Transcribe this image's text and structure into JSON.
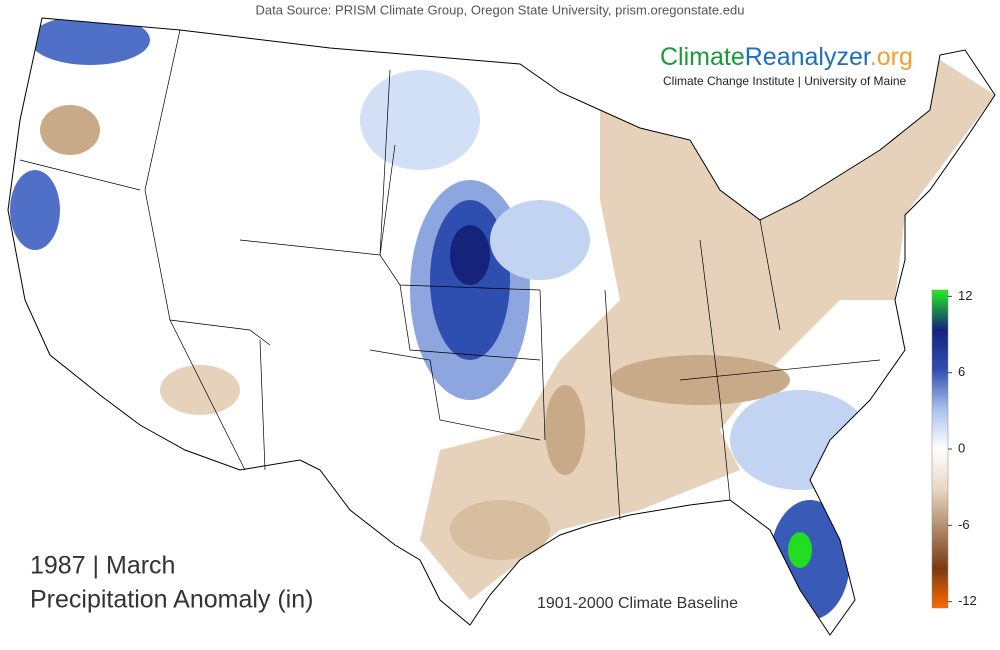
{
  "header": {
    "source": "Data Source: PRISM Climate Group, Oregon State University, prism.oregonstate.edu",
    "brand": {
      "part1": "Climate",
      "part2": "Reanalyzer",
      "part3": ".org"
    },
    "brand_subtitle": "Climate Change Institute | University of Maine"
  },
  "map": {
    "year_month": "1987 | March",
    "variable": "Precipitation Anomaly (in)",
    "baseline": "1901-2000 Climate Baseline"
  },
  "colorbar": {
    "range": [
      -12.5,
      12.5
    ],
    "ticks": [
      12,
      6,
      0,
      -6,
      -12
    ],
    "colors": [
      "#ff6a00",
      "#7a3a12",
      "#b08a68",
      "#e8d8c4",
      "#ffffff",
      "#a8c2ec",
      "#2f4fb0",
      "#15237a",
      "#22ee22"
    ]
  }
}
